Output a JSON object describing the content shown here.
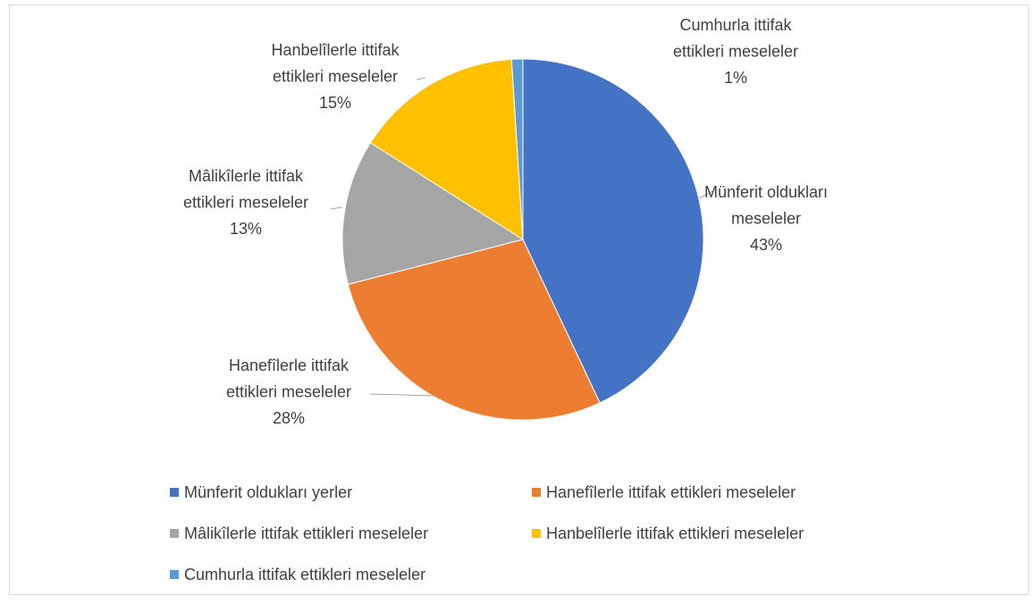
{
  "chart_data": {
    "type": "pie",
    "categories": [
      "Münferit oldukları yerler",
      "Hanefîlerle ittifak ettikleri meseleler",
      "Mâlikîlerle ittifak ettikleri meseleler",
      "Hanbelîlerle ittifak ettikleri meseleler",
      "Cumhurla ittifak ettikleri meseleler"
    ],
    "data_labels": [
      [
        "Münferit oldukları",
        "meseleler"
      ],
      [
        "Hanefîlerle ittifak",
        "ettikleri meseleler"
      ],
      [
        "Mâlikîlerle ittifak",
        "ettikleri meseleler"
      ],
      [
        "Hanbelîlerle ittifak",
        "ettikleri meseleler"
      ],
      [
        "Cumhurla ittifak",
        "ettikleri meseleler"
      ]
    ],
    "values": [
      43,
      28,
      13,
      15,
      1
    ],
    "value_labels": [
      "43%",
      "28%",
      "13%",
      "15%",
      "1%"
    ],
    "colors": [
      "#4472c4",
      "#ed7d31",
      "#a5a5a5",
      "#ffc000",
      "#5b9bd5"
    ],
    "legend": "bottom"
  }
}
